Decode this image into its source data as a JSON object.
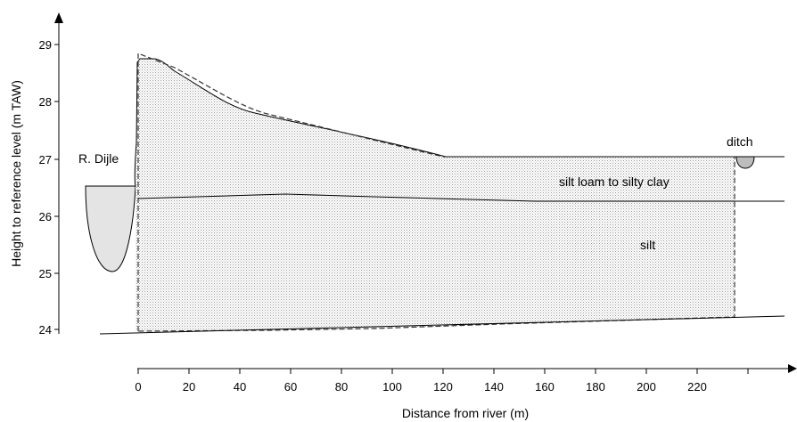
{
  "chart_data": {
    "type": "cross-section",
    "ylabel": "Height to reference level (m TAW)",
    "xlabel": "Distance from river (m)",
    "y_ticks": [
      "24",
      "25",
      "26",
      "27",
      "28",
      "29"
    ],
    "x_ticks": [
      "0",
      "20",
      "40",
      "60",
      "80",
      "100",
      "120",
      "140",
      "160",
      "180",
      "200",
      "220"
    ],
    "annotations": {
      "river": "R. Dijle",
      "ditch": "ditch",
      "upper_layer": "silt loam to silty clay",
      "lower_layer": "silt"
    },
    "colors": {
      "river_fill": "#e4e4e4",
      "stipple": "#9a9a9a",
      "line": "#000000"
    }
  }
}
